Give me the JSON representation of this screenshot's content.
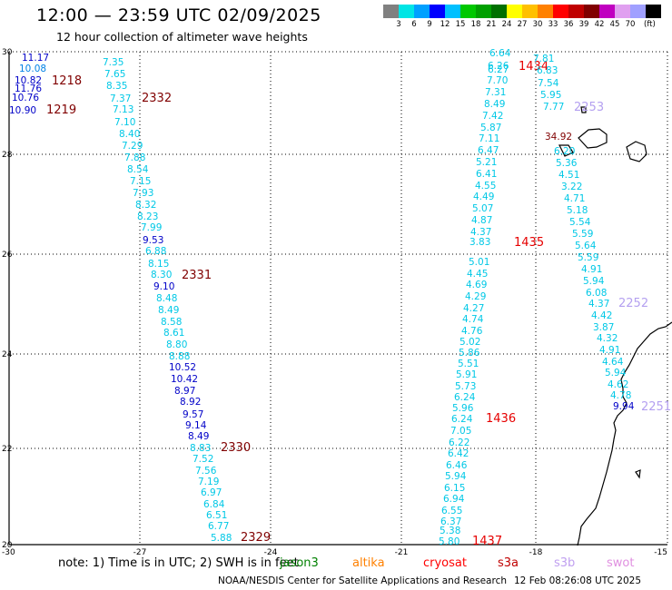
{
  "title": "12:00 — 23:59 UTC 02/09/2025",
  "subtitle": "12 hour collection of altimeter wave heights",
  "colorbar": {
    "unit": "(ft)",
    "labels": [
      "3",
      "6",
      "9",
      "12",
      "15",
      "18",
      "21",
      "24",
      "27",
      "30",
      "33",
      "36",
      "39",
      "42",
      "45",
      "70"
    ],
    "colors": [
      "#808080",
      "#00e5e5",
      "#00a0ff",
      "#0000ff",
      "#00c0ff",
      "#00c800",
      "#00a000",
      "#007000",
      "#ffff00",
      "#ffc000",
      "#ff8000",
      "#ff0000",
      "#c00000",
      "#800000",
      "#c000c0",
      "#e0a0f0",
      "#a0a0ff",
      "#000000"
    ]
  },
  "legend": {
    "note": "note:  1) Time is in UTC;  2) SWH is in feet",
    "missions": [
      {
        "name": "jason3",
        "color": "#008000"
      },
      {
        "name": "altika",
        "color": "#ff8000"
      },
      {
        "name": "cryosat",
        "color": "#ff0000"
      },
      {
        "name": "s3a",
        "color": "#c00000"
      },
      {
        "name": "s3b",
        "color": "#c0a0f0"
      },
      {
        "name": "swot",
        "color": "#e090e0"
      }
    ]
  },
  "credit": "NOAA/NESDIS Center for Satellite Applications and Research",
  "generated": "12 Feb 08:26:08 UTC 2025",
  "map": {
    "lon_range": [
      -30,
      -15
    ],
    "lat_range": [
      20,
      30
    ],
    "x_ticks": [
      "-30",
      "-27",
      "-24",
      "-21",
      "-18",
      "-15"
    ],
    "y_ticks": [
      "30",
      "28",
      "26",
      "24",
      "22",
      "20"
    ],
    "colors": {
      "c": "#00c8e6",
      "t": "#0082e6",
      "b": "#0000c8",
      "dr": "#800000",
      "r": "#e60000",
      "l": "#b4a0f0"
    },
    "tracks": [
      {
        "time": "1219",
        "values": [
          "11.17",
          "10.08",
          "10.82",
          "11.76",
          "10.76",
          "10.90"
        ]
      },
      {
        "time": "1218",
        "values": []
      },
      {
        "time": "2332",
        "values": [
          "7.35",
          "7.65",
          "8.35",
          "7.37",
          "7.13",
          "7.10",
          "8.40",
          "7.29",
          "7.88",
          "8.54",
          "7.15",
          "7.93",
          "8.32",
          "8.23",
          "7.99",
          "9.53",
          "6.88",
          "8.15",
          "8.30",
          "9.10",
          "8.48",
          "8.49",
          "8.58",
          "8.61",
          "8.80",
          "8.88",
          "10.52",
          "10.42",
          "8.97",
          "8.92",
          "9.57",
          "9.14",
          "8.49",
          "8.83",
          "7.52",
          "7.56",
          "7.19",
          "6.97",
          "6.84",
          "6.51",
          "6.77",
          "5.88"
        ]
      },
      {
        "time": "2331",
        "values": []
      },
      {
        "time": "2330",
        "values": []
      },
      {
        "time": "2329",
        "values": []
      },
      {
        "time": "1434",
        "values": [
          "6.64",
          "6.26",
          "6.27",
          "7.70",
          "7.31",
          "8.49",
          "7.42",
          "5.87",
          "7.11",
          "6.47",
          "5.21",
          "6.41",
          "4.55",
          "4.49",
          "5.07",
          "4.87",
          "4.37",
          "3.83",
          "5.01",
          "4.45",
          "4.69",
          "4.29",
          "4.27",
          "4.74",
          "4.76",
          "5.02",
          "5.86",
          "5.51",
          "5.91",
          "5.73",
          "6.24",
          "5.96",
          "6.24",
          "7.05",
          "6.22",
          "6.42",
          "6.46",
          "5.94",
          "6.15",
          "6.94",
          "6.55",
          "6.37",
          "5.38",
          "5.80"
        ]
      },
      {
        "time": "1435",
        "values": []
      },
      {
        "time": "1436",
        "values": []
      },
      {
        "time": "1437",
        "values": []
      },
      {
        "time": "2253",
        "values": [
          "7.81",
          "6.83",
          "7.54",
          "5.95",
          "7.77",
          "34.92",
          "6.20",
          "5.36",
          "4.51",
          "3.22",
          "4.71",
          "5.18",
          "5.54",
          "5.59",
          "5.64",
          "5.59",
          "4.91",
          "5.94",
          "6.08",
          "4.37",
          "4.42",
          "3.87",
          "4.32",
          "4.91",
          "4.64",
          "5.94",
          "4.62",
          "4.78",
          "9.94"
        ]
      },
      {
        "time": "2252",
        "values": []
      },
      {
        "time": "2251",
        "values": []
      }
    ]
  }
}
